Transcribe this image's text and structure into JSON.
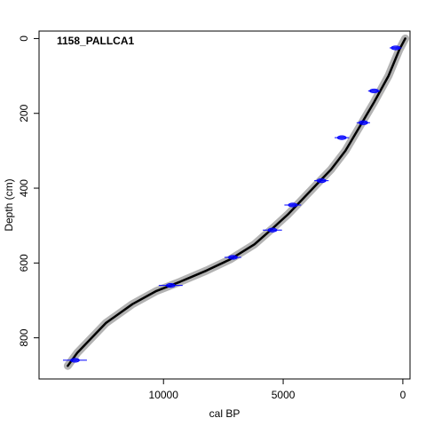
{
  "chart_data": {
    "type": "line",
    "title": "1158_PALLCA1",
    "xlabel": "cal BP",
    "ylabel": "Depth (cm)",
    "xlim": [
      15200,
      -300
    ],
    "ylim": [
      910,
      -20
    ],
    "x_ticks": [
      10000,
      5000,
      0
    ],
    "x_tick_labels": [
      "10000",
      "5000",
      "0"
    ],
    "y_ticks": [
      0,
      200,
      400,
      600,
      800
    ],
    "y_tick_labels": [
      "0",
      "200",
      "400",
      "600",
      "800"
    ],
    "grid": false,
    "colors": {
      "model_line": "#000000",
      "uncertainty_band": "#b3b3b3",
      "dates": "#0000ff"
    },
    "series": [
      {
        "role": "age-depth model",
        "x": [
          -100,
          150,
          600,
          1200,
          1800,
          2400,
          3000,
          3600,
          4200,
          4800,
          5400,
          6200,
          7200,
          8200,
          9300,
          10300,
          11300,
          12400,
          13600,
          14000
        ],
        "y": [
          0,
          30,
          100,
          170,
          235,
          300,
          350,
          390,
          430,
          470,
          505,
          550,
          590,
          620,
          650,
          675,
          710,
          760,
          840,
          875
        ]
      }
    ],
    "dates": [
      {
        "age": 300,
        "age_err": 250,
        "depth": 25
      },
      {
        "age": 1200,
        "age_err": 250,
        "depth": 140
      },
      {
        "age": 1650,
        "age_err": 280,
        "depth": 225
      },
      {
        "age": 2550,
        "age_err": 300,
        "depth": 265
      },
      {
        "age": 3400,
        "age_err": 300,
        "depth": 380
      },
      {
        "age": 4600,
        "age_err": 350,
        "depth": 445
      },
      {
        "age": 5450,
        "age_err": 400,
        "depth": 512
      },
      {
        "age": 7100,
        "age_err": 350,
        "depth": 585
      },
      {
        "age": 9700,
        "age_err": 500,
        "depth": 660
      },
      {
        "age": 13700,
        "age_err": 500,
        "depth": 860
      }
    ]
  }
}
